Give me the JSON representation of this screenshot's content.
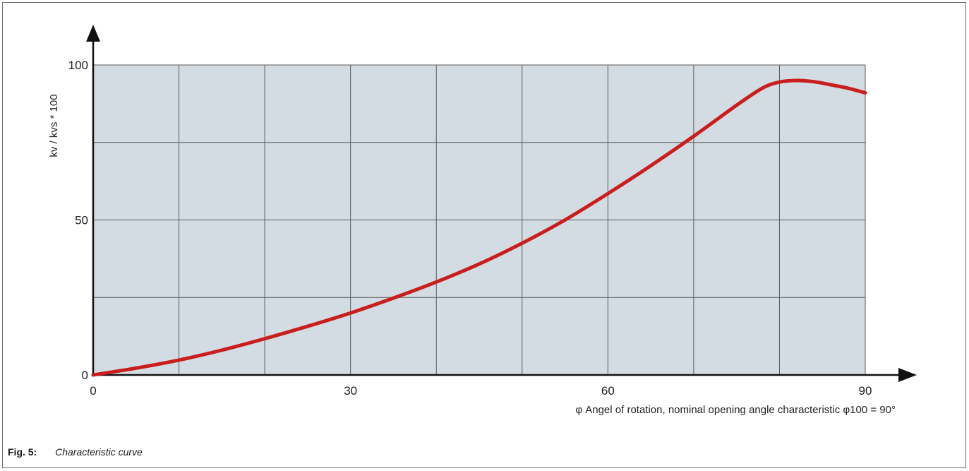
{
  "chart_data": {
    "type": "line",
    "title": "",
    "xlabel": "φ Angel of rotation, nominal opening angle characteristic φ100 = 90°",
    "ylabel": "kv / kvs * 100",
    "xlim": [
      0,
      90
    ],
    "ylim": [
      0,
      100
    ],
    "x_ticks": [
      0,
      30,
      60,
      90
    ],
    "y_ticks": [
      0,
      50,
      100
    ],
    "x_grid_step": 10,
    "y_grid_step": 25,
    "grid": true,
    "plot_background": "#d4dce3",
    "series": [
      {
        "name": "",
        "color": "#c81e1e",
        "x": [
          0,
          5,
          10,
          15,
          20,
          25,
          30,
          35,
          40,
          45,
          50,
          55,
          60,
          65,
          70,
          75,
          78,
          80,
          82,
          84,
          86,
          88,
          90
        ],
        "y": [
          0,
          2.2,
          4.8,
          8.0,
          11.7,
          15.7,
          20.0,
          24.8,
          30.0,
          35.8,
          42.5,
          50.0,
          58.5,
          67.5,
          77.0,
          87.0,
          92.5,
          94.5,
          95.0,
          94.6,
          93.6,
          92.5,
          91.0
        ]
      }
    ]
  },
  "caption": {
    "label": "Fig. 5:",
    "title": "Characteristic curve"
  }
}
